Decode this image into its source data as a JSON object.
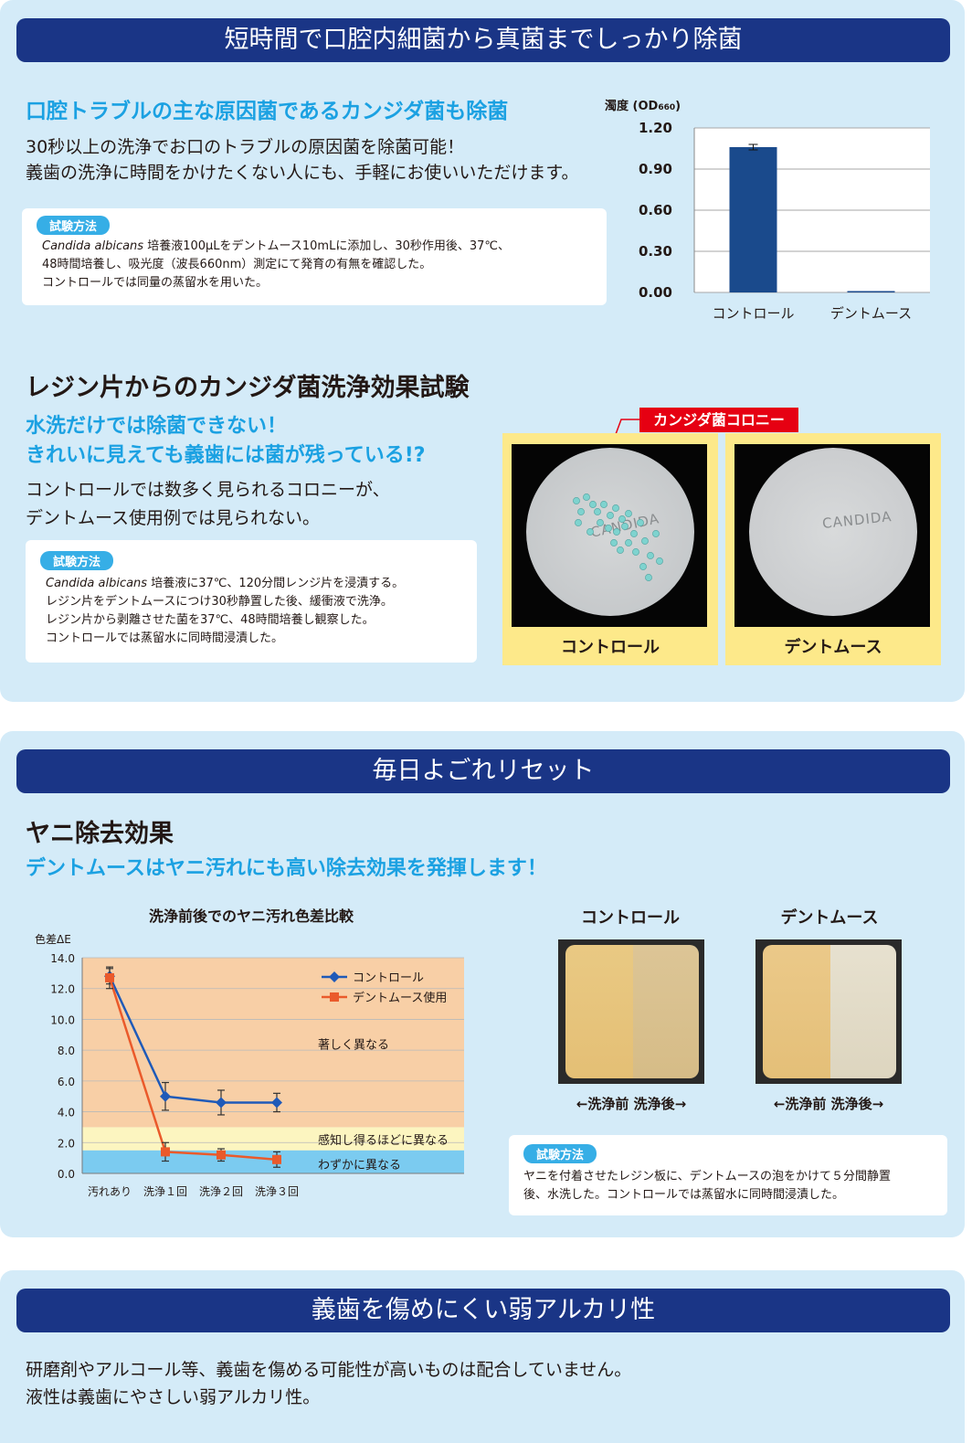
{
  "s1": {
    "banner": "短時間で口腔内細菌から真菌までしっかり除菌",
    "blue_heading": "口腔トラブルの主な原因菌であるカンジダ菌も除菌",
    "body1": "30秒以上の洗浄でお口のトラブルの原因菌を除菌可能！",
    "body2": "義歯の洗浄に時間をかけたくない人にも、手軽にお使いいただけます。",
    "method_tag": "試験方法",
    "method_italic": "Candida albicans",
    "method1": " 培養液100μLをデントムース10mLに添加し、30秒作用後、37℃、",
    "method2": "48時間培養し、吸光度（波長660nm）測定にて発育の有無を確認した。",
    "method3": "コントロールでは同量の蒸留水を用いた。"
  },
  "s2": {
    "heading": "レジン片からのカンジダ菌洗浄効果試験",
    "blue1": "水洗だけでは除菌できない！",
    "blue2": "きれいに見えても義歯には菌が残っている!?",
    "body1": "コントロールでは数多く見られるコロニーが、",
    "body2": "デントムース使用例では見られない。",
    "method_tag": "試験方法",
    "method_italic": "Candida albicans",
    "method1": " 培養液に37℃、120分間レンジ片を浸漬する。",
    "method2": "レジン片をデントムースにつけ30秒静置した後、緩衝液で洗浄。",
    "method3": "レジン片から剥離させた菌を37℃、48時間培養し観察した。",
    "method4": "コントロールでは蒸留水に同時間浸漬した。",
    "colony_callout": "カンジダ菌コロニー",
    "dish_label_control": "コントロール",
    "dish_label_dent": "デントムース",
    "dish_print_control": "CANDIDA",
    "dish_print_dent": "CANDIDA"
  },
  "s3": {
    "banner": "毎日よごれリセット",
    "heading": "ヤニ除去効果",
    "blue": "デントムースはヤニ汚れにも高い除去効果を発揮します！",
    "photo_label_control": "コントロール",
    "photo_label_dent": "デントムース",
    "photo_caption_control": "←洗浄前 洗浄後→",
    "photo_caption_dent": "←洗浄前 洗浄後→",
    "method_tag": "試験方法",
    "method1": "ヤニを付着させたレジン板に、デントムースの泡をかけて５分間静置",
    "method2": "後、水洗した。コントロールでは蒸留水に同時間浸漬した。"
  },
  "s4": {
    "banner": "義歯を傷めにくい弱アルカリ性",
    "body1": "研磨剤やアルコール等、義歯を傷める可能性が高いものは配合していません。",
    "body2": "液性は義歯にやさしい弱アルカリ性。"
  },
  "chart_data": [
    {
      "type": "bar",
      "ylabel": "濁度 (OD",
      "ylabel_sub": "660",
      "ylabel_end": ")",
      "categories": [
        "コントロール",
        "デントムース"
      ],
      "values": [
        1.06,
        0.01
      ],
      "errors": [
        0.02,
        0.0
      ],
      "ylim": [
        0,
        1.2
      ],
      "yticks": [
        "0.00",
        "0.30",
        "0.60",
        "0.90",
        "1.20"
      ],
      "ytick_values": [
        0,
        0.3,
        0.6,
        0.9,
        1.2
      ],
      "bar_color": "#1a4a8c",
      "grid": true
    },
    {
      "type": "line",
      "title": "洗浄前後でのヤニ汚れ色差比較",
      "ylabel": "色差ΔE",
      "categories": [
        "汚れあり",
        "洗浄１回",
        "洗浄２回",
        "洗浄３回"
      ],
      "ylim": [
        0,
        14
      ],
      "yticks": [
        "0.0",
        "2.0",
        "4.0",
        "6.0",
        "8.0",
        "10.0",
        "12.0",
        "14.0"
      ],
      "ytick_values": [
        0,
        2,
        4,
        6,
        8,
        10,
        12,
        14
      ],
      "series": [
        {
          "name": "コントロール",
          "values": [
            12.8,
            5.0,
            4.6,
            4.6
          ],
          "errors": [
            0.5,
            0.9,
            0.8,
            0.6
          ],
          "color": "#1f5ab8",
          "marker": "diamond"
        },
        {
          "name": "デントムース使用",
          "values": [
            12.7,
            1.4,
            1.2,
            0.9
          ],
          "errors": [
            0.7,
            0.6,
            0.4,
            0.5
          ],
          "color": "#ea5a2b",
          "marker": "square"
        }
      ],
      "bands": [
        {
          "from": 0,
          "to": 1.5,
          "label": "わずかに異なる",
          "color": "#7bcbf0"
        },
        {
          "from": 1.5,
          "to": 3.0,
          "label": "感知し得るほどに異なる",
          "color": "#fcf5c0"
        },
        {
          "from": 3.0,
          "to": 14,
          "label": "著しく異なる",
          "color": "#f8cfa6"
        }
      ],
      "legend_position": "top-right",
      "grid": true
    }
  ]
}
